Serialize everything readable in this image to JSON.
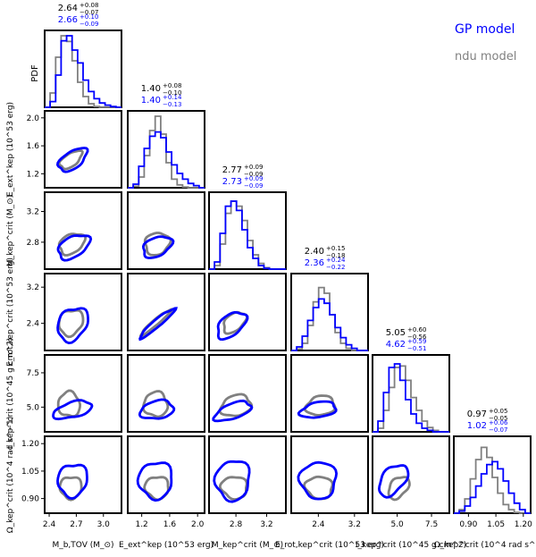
{
  "legend": [
    {
      "label": "GP model",
      "color": "#0000ff"
    },
    {
      "label": "ndu model",
      "color": "#808080"
    }
  ],
  "colors": {
    "gp": "#0000ff",
    "ndu": "#808080",
    "frame": "#000000"
  },
  "chart_data": {
    "type": "corner",
    "title": "",
    "parameters": [
      {
        "name": "M_b_TOV",
        "xlabel": "M_b,TOV (M_⊙)",
        "ylabel": "",
        "range": [
          2.35,
          3.2
        ],
        "ticks": [
          "2.4",
          "2.7",
          "3.0"
        ],
        "tickvals": [
          2.4,
          2.7,
          3.0
        ],
        "ndu": {
          "median": "2.64",
          "plus": "+0.08",
          "minus": "−0.07"
        },
        "gp": {
          "median": "2.66",
          "plus": "+0.10",
          "minus": "−0.09"
        },
        "hist": {
          "gp": [
            0,
            0.08,
            0.45,
            0.93,
            1.0,
            0.8,
            0.62,
            0.38,
            0.22,
            0.12,
            0.06,
            0.03,
            0.01,
            0
          ],
          "ndu": [
            0,
            0.2,
            0.7,
            1.0,
            0.92,
            0.65,
            0.35,
            0.15,
            0.05,
            0.01,
            0,
            0,
            0,
            0
          ]
        }
      },
      {
        "name": "E_ext_kep",
        "xlabel": "E_ext^kep (10^53 erg)",
        "ylabel": "E_ext^kep (10^53 erg)",
        "range": [
          1.0,
          2.1
        ],
        "ticks": [
          "1.2",
          "1.6",
          "2.0"
        ],
        "tickvals": [
          1.2,
          1.6,
          2.0
        ],
        "ndu": {
          "median": "1.40",
          "plus": "+0.08",
          "minus": "−0.10"
        },
        "gp": {
          "median": "1.40",
          "plus": "+0.14",
          "minus": "−0.13"
        },
        "hist": {
          "gp": [
            0,
            0.05,
            0.3,
            0.55,
            0.72,
            0.78,
            0.7,
            0.5,
            0.32,
            0.2,
            0.12,
            0.06,
            0.03,
            0
          ],
          "ndu": [
            0,
            0.02,
            0.15,
            0.45,
            0.8,
            1.0,
            0.75,
            0.35,
            0.12,
            0.04,
            0.01,
            0,
            0,
            0
          ]
        }
      },
      {
        "name": "M_crit_kep",
        "xlabel": "M_kep^crit (M_⊙)",
        "ylabel": "M_kep^crit (M_⊙)",
        "range": [
          2.45,
          3.45
        ],
        "ticks": [
          "2.8",
          "3.2"
        ],
        "tickvals": [
          2.8,
          3.2
        ],
        "ndu": {
          "median": "2.77",
          "plus": "+0.09",
          "minus": "−0.09"
        },
        "gp": {
          "median": "2.73",
          "plus": "+0.09",
          "minus": "−0.09"
        },
        "hist": {
          "gp": [
            0,
            0.1,
            0.5,
            0.88,
            0.95,
            0.82,
            0.55,
            0.3,
            0.15,
            0.05,
            0.01,
            0,
            0,
            0
          ],
          "ndu": [
            0,
            0.05,
            0.35,
            0.78,
            0.95,
            0.88,
            0.68,
            0.4,
            0.2,
            0.08,
            0.02,
            0,
            0,
            0
          ]
        }
      },
      {
        "name": "E_crit_rot_kep",
        "xlabel": "E_rot,kep^crit (10^53 erg)",
        "ylabel": "E_rot,kep^crit (10^53 erg)",
        "range": [
          1.8,
          3.5
        ],
        "ticks": [
          "2.4",
          "3.2"
        ],
        "tickvals": [
          2.4,
          3.2
        ],
        "ndu": {
          "median": "2.40",
          "plus": "+0.15",
          "minus": "−0.18"
        },
        "gp": {
          "median": "2.36",
          "plus": "+0.24",
          "minus": "−0.22"
        },
        "hist": {
          "gp": [
            0,
            0.05,
            0.2,
            0.42,
            0.6,
            0.72,
            0.66,
            0.5,
            0.32,
            0.18,
            0.08,
            0.03,
            0,
            0
          ],
          "ndu": [
            0,
            0.02,
            0.1,
            0.35,
            0.68,
            0.88,
            0.8,
            0.5,
            0.25,
            0.1,
            0.03,
            0,
            0,
            0
          ]
        }
      },
      {
        "name": "I_crit_kep",
        "xlabel": "I_kep^crit (10^45 g cm^2)",
        "ylabel": "I_kep^crit (10^45 g cm^2)",
        "range": [
          3.2,
          8.8
        ],
        "ticks": [
          "5.0",
          "7.5"
        ],
        "tickvals": [
          5.0,
          7.5
        ],
        "ndu": {
          "median": "5.05",
          "plus": "+0.60",
          "minus": "−0.56"
        },
        "gp": {
          "median": "4.62",
          "plus": "+0.59",
          "minus": "−0.51"
        },
        "hist": {
          "gp": [
            0,
            0.15,
            0.55,
            0.9,
            0.95,
            0.72,
            0.45,
            0.25,
            0.12,
            0.05,
            0.02,
            0,
            0,
            0
          ],
          "ndu": [
            0,
            0.05,
            0.3,
            0.62,
            0.9,
            0.92,
            0.72,
            0.48,
            0.3,
            0.15,
            0.06,
            0.02,
            0,
            0
          ]
        }
      },
      {
        "name": "Omega_crit_kep",
        "xlabel": "Ω_kep^crit (10^4 rad s^−1)",
        "ylabel": "Ω_kep^crit (10^4 rad s^−1)",
        "range": [
          0.82,
          1.24
        ],
        "ticks": [
          "0.90",
          "1.05",
          "1.20"
        ],
        "tickvals": [
          0.9,
          1.05,
          1.2
        ],
        "ndu": {
          "median": "0.97",
          "plus": "+0.05",
          "minus": "−0.05"
        },
        "gp": {
          "median": "1.02",
          "plus": "+0.06",
          "minus": "−0.07"
        },
        "hist": {
          "gp": [
            0,
            0.03,
            0.1,
            0.22,
            0.38,
            0.55,
            0.68,
            0.72,
            0.62,
            0.45,
            0.28,
            0.14,
            0.05,
            0
          ],
          "ndu": [
            0,
            0.05,
            0.2,
            0.48,
            0.75,
            0.92,
            0.78,
            0.5,
            0.28,
            0.12,
            0.05,
            0.01,
            0,
            0
          ]
        }
      }
    ],
    "y_row_ticks": {
      "1": [
        "1.2",
        "1.6",
        "2.0"
      ],
      "2": [
        "2.8",
        "3.2"
      ],
      "3": [
        "2.4",
        "3.2"
      ],
      "4": [
        "5.0",
        "7.5"
      ],
      "5": [
        "0.90",
        "1.05",
        "1.20"
      ]
    },
    "diag_ylabel": "PDF"
  }
}
